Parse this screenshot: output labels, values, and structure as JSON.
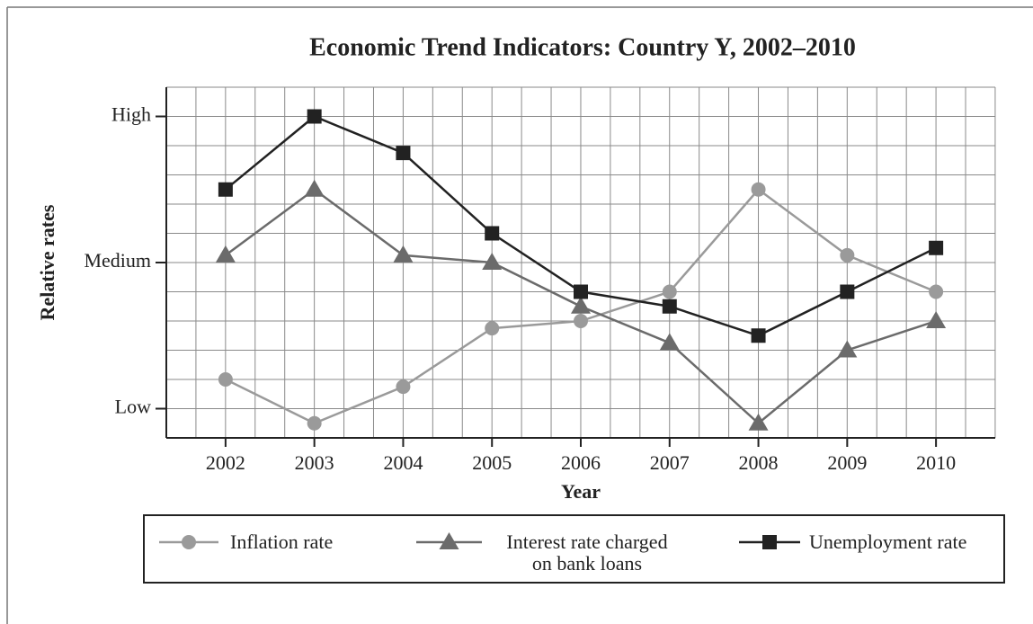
{
  "chart_data": {
    "type": "line",
    "title": "Economic Trend Indicators:  Country Y, 2002–2010",
    "x_label": "Year",
    "y_label": "Relative rates",
    "x": [
      2002,
      2003,
      2004,
      2005,
      2006,
      2007,
      2008,
      2009,
      2010
    ],
    "xlim": [
      2001.333,
      2010.667
    ],
    "xticks": [
      2002,
      2003,
      2004,
      2005,
      2006,
      2007,
      2008,
      2009,
      2010
    ],
    "ylim": [
      -1,
      11
    ],
    "yticks": [
      {
        "value": 0,
        "label": "Low"
      },
      {
        "value": 5,
        "label": "Medium"
      },
      {
        "value": 10,
        "label": "High"
      }
    ],
    "grid": true,
    "legend": "bottom",
    "series": [
      {
        "name": "Inflation rate",
        "color": "#9a9a9a",
        "marker": "circle",
        "values": [
          1.0,
          -0.5,
          0.75,
          2.75,
          3.0,
          4.0,
          7.5,
          5.25,
          4.0
        ]
      },
      {
        "name": "Interest rate charged\non bank loans",
        "color": "#6b6b6b",
        "marker": "triangle",
        "values": [
          5.25,
          7.5,
          5.25,
          5.0,
          3.5,
          2.25,
          -0.5,
          2.0,
          3.0
        ]
      },
      {
        "name": "Unemployment rate",
        "color": "#222222",
        "marker": "square",
        "values": [
          7.5,
          10.0,
          8.75,
          6.0,
          4.0,
          3.5,
          2.5,
          4.0,
          5.5
        ]
      }
    ]
  }
}
